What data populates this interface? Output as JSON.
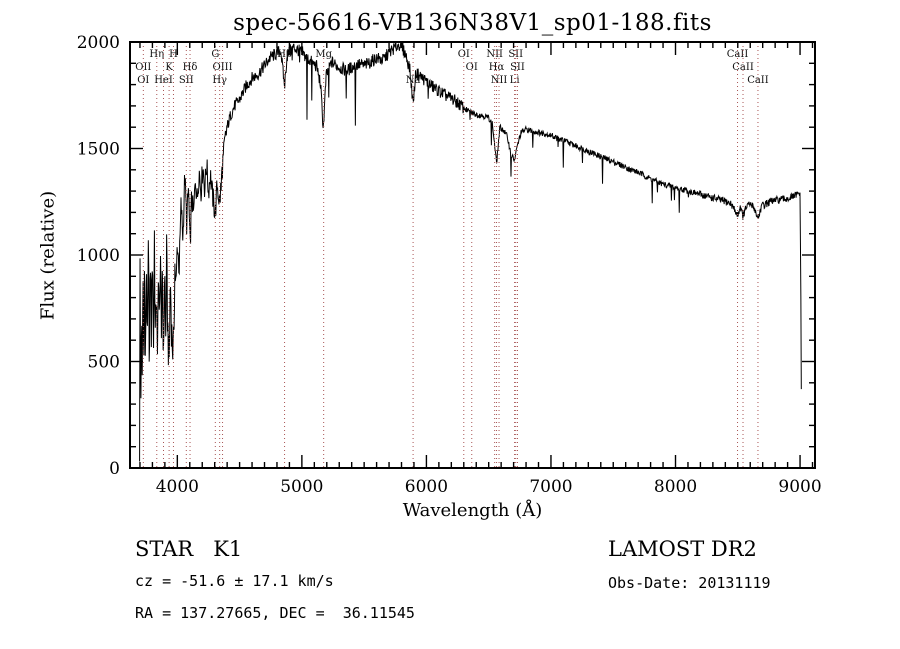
{
  "chart_data": {
    "type": "line",
    "title": "spec-56616-VB136N38V1_sp01-188.fits",
    "xlabel": "Wavelength (Å)",
    "ylabel": "Flux (relative)",
    "xlim": [
      3620,
      9120
    ],
    "ylim": [
      0,
      2000
    ],
    "x_ticks": [
      4000,
      5000,
      6000,
      7000,
      8000,
      9000
    ],
    "y_ticks": [
      0,
      500,
      1000,
      1500,
      2000
    ],
    "x_minor_step": 100,
    "y_minor_step": 100,
    "grid": false,
    "line_color": "#000000",
    "marker_line_color": "#a85454",
    "series": [
      {
        "name": "spectrum",
        "wavelength_start": 3697,
        "wavelength_end": 9012,
        "sample_step": 3.5,
        "noise": {
          "segments": [
            {
              "below": 4000,
              "amp": 110
            },
            {
              "below": 4400,
              "amp": 60
            },
            {
              "below": 6300,
              "amp": 30
            },
            {
              "below": 8200,
              "amp": 14
            }
          ],
          "default_amp": 18
        },
        "envelope_points": [
          [
            3697,
            100
          ],
          [
            3701,
            1050
          ],
          [
            3706,
            200
          ],
          [
            3712,
            750
          ],
          [
            3718,
            380
          ],
          [
            3724,
            950
          ],
          [
            3730,
            480
          ],
          [
            3737,
            1020
          ],
          [
            3744,
            420
          ],
          [
            3752,
            980
          ],
          [
            3760,
            560
          ],
          [
            3768,
            1050
          ],
          [
            3776,
            450
          ],
          [
            3784,
            1000
          ],
          [
            3792,
            620
          ],
          [
            3800,
            1080
          ],
          [
            3808,
            520
          ],
          [
            3816,
            1100
          ],
          [
            3824,
            560
          ],
          [
            3832,
            900
          ],
          [
            3840,
            420
          ],
          [
            3848,
            1000
          ],
          [
            3856,
            600
          ],
          [
            3864,
            1080
          ],
          [
            3872,
            520
          ],
          [
            3880,
            1020
          ],
          [
            3889,
            460
          ],
          [
            3898,
            980
          ],
          [
            3906,
            560
          ],
          [
            3914,
            1000
          ],
          [
            3922,
            680
          ],
          [
            3934,
            470
          ],
          [
            3944,
            900
          ],
          [
            3954,
            640
          ],
          [
            3969,
            520
          ],
          [
            3980,
            960
          ],
          [
            3990,
            820
          ],
          [
            4000,
            1060
          ],
          [
            4015,
            930
          ],
          [
            4030,
            1240
          ],
          [
            4045,
            1080
          ],
          [
            4060,
            1380
          ],
          [
            4075,
            1150
          ],
          [
            4090,
            1320
          ],
          [
            4102,
            1020
          ],
          [
            4115,
            1280
          ],
          [
            4130,
            1180
          ],
          [
            4145,
            1360
          ],
          [
            4160,
            1260
          ],
          [
            4175,
            1400
          ],
          [
            4190,
            1300
          ],
          [
            4205,
            1420
          ],
          [
            4220,
            1310
          ],
          [
            4235,
            1430
          ],
          [
            4250,
            1300
          ],
          [
            4265,
            1380
          ],
          [
            4280,
            1290
          ],
          [
            4305,
            1190
          ],
          [
            4320,
            1330
          ],
          [
            4340,
            1240
          ],
          [
            4360,
            1400
          ],
          [
            4380,
            1520
          ],
          [
            4400,
            1600
          ],
          [
            4430,
            1660
          ],
          [
            4460,
            1700
          ],
          [
            4500,
            1730
          ],
          [
            4550,
            1790
          ],
          [
            4600,
            1830
          ],
          [
            4650,
            1850
          ],
          [
            4700,
            1890
          ],
          [
            4750,
            1930
          ],
          [
            4800,
            1945
          ],
          [
            4830,
            1965
          ],
          [
            4861,
            1790
          ],
          [
            4880,
            1930
          ],
          [
            4900,
            1955
          ],
          [
            4930,
            1975
          ],
          [
            4960,
            1965
          ],
          [
            5000,
            1950
          ],
          [
            5040,
            1925
          ],
          [
            5080,
            1905
          ],
          [
            5120,
            1885
          ],
          [
            5150,
            1800
          ],
          [
            5172,
            1590
          ],
          [
            5195,
            1840
          ],
          [
            5240,
            1905
          ],
          [
            5280,
            1890
          ],
          [
            5320,
            1875
          ],
          [
            5360,
            1865
          ],
          [
            5400,
            1880
          ],
          [
            5450,
            1895
          ],
          [
            5500,
            1890
          ],
          [
            5550,
            1905
          ],
          [
            5600,
            1925
          ],
          [
            5650,
            1915
          ],
          [
            5700,
            1950
          ],
          [
            5750,
            1975
          ],
          [
            5790,
            1990
          ],
          [
            5830,
            1945
          ],
          [
            5865,
            1880
          ],
          [
            5893,
            1710
          ],
          [
            5915,
            1855
          ],
          [
            5950,
            1840
          ],
          [
            6000,
            1815
          ],
          [
            6050,
            1790
          ],
          [
            6100,
            1770
          ],
          [
            6150,
            1750
          ],
          [
            6200,
            1735
          ],
          [
            6250,
            1715
          ],
          [
            6300,
            1690
          ],
          [
            6350,
            1670
          ],
          [
            6400,
            1660
          ],
          [
            6450,
            1655
          ],
          [
            6500,
            1645
          ],
          [
            6530,
            1615
          ],
          [
            6563,
            1430
          ],
          [
            6590,
            1600
          ],
          [
            6620,
            1585
          ],
          [
            6650,
            1555
          ],
          [
            6680,
            1470
          ],
          [
            6708,
            1445
          ],
          [
            6731,
            1515
          ],
          [
            6760,
            1575
          ],
          [
            6800,
            1590
          ],
          [
            6850,
            1582
          ],
          [
            6900,
            1575
          ],
          [
            6950,
            1570
          ],
          [
            7000,
            1562
          ],
          [
            7100,
            1538
          ],
          [
            7200,
            1512
          ],
          [
            7300,
            1488
          ],
          [
            7400,
            1462
          ],
          [
            7500,
            1438
          ],
          [
            7600,
            1412
          ],
          [
            7700,
            1388
          ],
          [
            7800,
            1358
          ],
          [
            7900,
            1332
          ],
          [
            8000,
            1318
          ],
          [
            8100,
            1300
          ],
          [
            8200,
            1285
          ],
          [
            8300,
            1268
          ],
          [
            8400,
            1252
          ],
          [
            8450,
            1238
          ],
          [
            8498,
            1185
          ],
          [
            8520,
            1228
          ],
          [
            8542,
            1180
          ],
          [
            8570,
            1228
          ],
          [
            8600,
            1238
          ],
          [
            8630,
            1225
          ],
          [
            8662,
            1170
          ],
          [
            8690,
            1228
          ],
          [
            8730,
            1242
          ],
          [
            8770,
            1252
          ],
          [
            8820,
            1258
          ],
          [
            8870,
            1262
          ],
          [
            8920,
            1268
          ],
          [
            8960,
            1278
          ],
          [
            9000,
            1288
          ],
          [
            9006,
            850
          ],
          [
            9012,
            120
          ]
        ]
      }
    ],
    "spectral_lines": [
      {
        "wavelength": 3727,
        "label": "OII",
        "row": 1
      },
      {
        "wavelength": 3727,
        "label": "OI",
        "row": 2
      },
      {
        "wavelength": 3835,
        "label": "Hη",
        "row": 0
      },
      {
        "wavelength": 3889,
        "label": "HeI",
        "row": 2
      },
      {
        "wavelength": 3934,
        "label": "K",
        "row": 1
      },
      {
        "wavelength": 3969,
        "label": "H",
        "row": 0
      },
      {
        "wavelength": 4072,
        "label": "SII",
        "row": 2
      },
      {
        "wavelength": 4102,
        "label": "Hδ",
        "row": 1
      },
      {
        "wavelength": 4305,
        "label": "G",
        "row": 0
      },
      {
        "wavelength": 4340,
        "label": "Hγ",
        "row": 2
      },
      {
        "wavelength": 4363,
        "label": "OIII",
        "row": 1
      },
      {
        "wavelength": 4861,
        "label": "Hβ",
        "row": 0
      },
      {
        "wavelength": 5175,
        "label": "Mg",
        "row": 0
      },
      {
        "wavelength": 5893,
        "label": "Na",
        "row": 2
      },
      {
        "wavelength": 6300,
        "label": "OI",
        "row": 0
      },
      {
        "wavelength": 6364,
        "label": "OI",
        "row": 1
      },
      {
        "wavelength": 6548,
        "label": "NII",
        "row": 0
      },
      {
        "wavelength": 6563,
        "label": "Hα",
        "row": 1
      },
      {
        "wavelength": 6583,
        "label": "NII",
        "row": 2
      },
      {
        "wavelength": 6708,
        "label": "Li",
        "row": 2
      },
      {
        "wavelength": 6717,
        "label": "SII",
        "row": 0
      },
      {
        "wavelength": 6731,
        "label": "SII",
        "row": 1
      },
      {
        "wavelength": 8498,
        "label": "CaII",
        "row": 0
      },
      {
        "wavelength": 8542,
        "label": "CaII",
        "row": 1
      },
      {
        "wavelength": 8662,
        "label": "CaII",
        "row": 2
      }
    ]
  },
  "footer": {
    "class_line": "STAR   K1",
    "survey": "LAMOST DR2",
    "cz_line": "cz = -51.6 ± 17.1 km/s",
    "obs_date": "Obs-Date: 20131119",
    "radec_line": "RA = 137.27665, DEC =  36.11545"
  }
}
